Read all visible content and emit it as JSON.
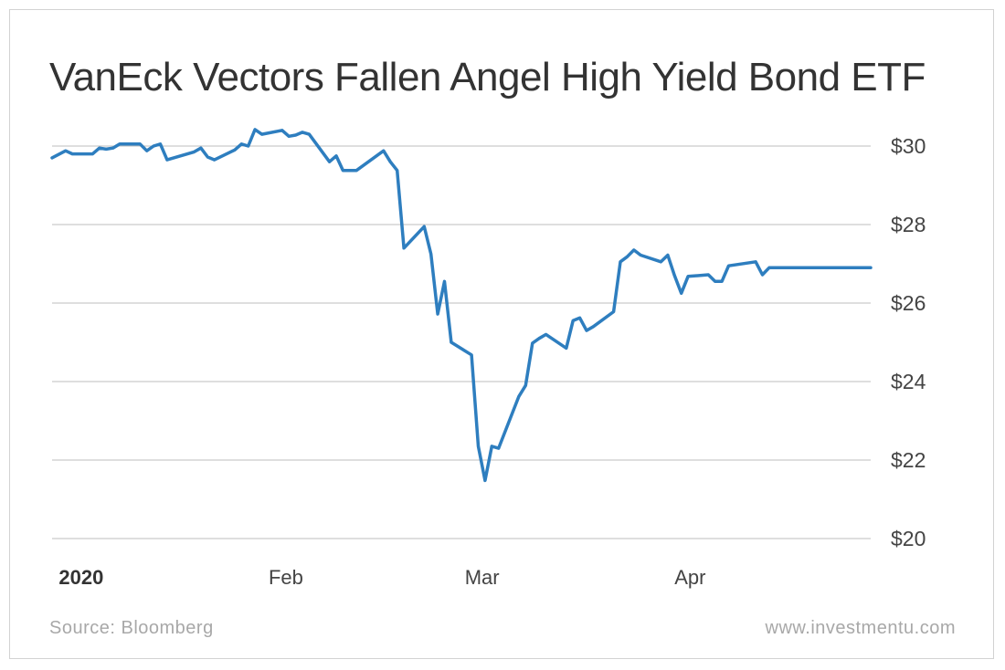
{
  "chart_data": {
    "type": "line",
    "title": "VanEck Vectors Fallen Angel High Yield Bond ETF",
    "xlabel": "",
    "ylabel": "",
    "x_range": [
      "2019-12-31",
      "2020-04-30"
    ],
    "ylim": [
      20,
      30
    ],
    "y_ticks": [
      30,
      28,
      26,
      24,
      22,
      20
    ],
    "y_tick_labels": [
      "$30",
      "$28",
      "$26",
      "$24",
      "$22",
      "$20"
    ],
    "x_ticks": [
      {
        "date": "2020-01-01",
        "label": "2020",
        "bold": true
      },
      {
        "date": "2020-02-01",
        "label": "Feb",
        "bold": false
      },
      {
        "date": "2020-03-01",
        "label": "Mar",
        "bold": false
      },
      {
        "date": "2020-04-01",
        "label": "Apr",
        "bold": false
      }
    ],
    "grid": "horizontal",
    "line_color": "#2e7ebf",
    "series": [
      {
        "x": [
          "2019-12-31",
          "2020-01-02",
          "2020-01-03",
          "2020-01-06",
          "2020-01-07",
          "2020-01-08",
          "2020-01-09",
          "2020-01-10",
          "2020-01-13",
          "2020-01-14",
          "2020-01-15",
          "2020-01-16",
          "2020-01-17",
          "2020-01-21",
          "2020-01-22",
          "2020-01-23",
          "2020-01-24",
          "2020-01-27",
          "2020-01-28",
          "2020-01-29",
          "2020-01-30",
          "2020-01-31",
          "2020-02-03",
          "2020-02-04",
          "2020-02-05",
          "2020-02-06",
          "2020-02-07",
          "2020-02-10",
          "2020-02-11",
          "2020-02-12",
          "2020-02-13",
          "2020-02-14",
          "2020-02-18",
          "2020-02-19",
          "2020-02-20",
          "2020-02-21",
          "2020-02-24",
          "2020-02-25",
          "2020-02-26",
          "2020-02-27",
          "2020-02-28",
          "2020-03-02",
          "2020-03-03",
          "2020-03-04",
          "2020-03-05",
          "2020-03-06",
          "2020-03-09",
          "2020-03-10",
          "2020-03-11",
          "2020-03-12",
          "2020-03-13",
          "2020-03-16",
          "2020-03-17",
          "2020-03-18",
          "2020-03-19",
          "2020-03-20",
          "2020-03-23",
          "2020-03-24",
          "2020-03-25",
          "2020-03-26",
          "2020-03-27",
          "2020-03-30",
          "2020-03-31",
          "2020-04-01",
          "2020-04-02",
          "2020-04-03",
          "2020-04-06",
          "2020-04-07",
          "2020-04-08",
          "2020-04-09",
          "2020-04-13",
          "2020-04-14",
          "2020-04-15",
          "2020-04-16",
          "2020-04-17",
          "2020-04-20",
          "2020-04-21",
          "2020-04-22",
          "2020-04-23",
          "2020-04-24",
          "2020-04-27",
          "2020-04-28",
          "2020-04-29",
          "2020-04-30"
        ],
        "y": [
          29.7,
          29.88,
          29.8,
          29.8,
          29.95,
          29.92,
          29.95,
          30.05,
          30.05,
          29.88,
          30.0,
          30.05,
          29.65,
          29.85,
          29.95,
          29.72,
          29.65,
          29.9,
          30.05,
          30.0,
          30.42,
          30.3,
          30.4,
          30.25,
          30.28,
          30.35,
          30.3,
          29.6,
          29.75,
          29.38,
          29.38,
          29.38,
          29.88,
          29.6,
          29.38,
          27.4,
          27.95,
          27.25,
          25.72,
          26.55,
          25.0,
          24.68,
          22.35,
          21.48,
          22.35,
          22.3,
          23.62,
          23.9,
          24.98,
          25.1,
          25.2,
          24.85,
          25.55,
          25.62,
          25.3,
          25.4,
          25.78,
          27.05,
          27.18,
          27.35,
          27.22,
          27.05,
          27.22,
          26.7,
          26.25,
          26.68,
          26.72,
          26.55,
          26.55,
          26.95,
          27.05,
          26.72,
          26.9,
          26.9,
          26.9,
          26.9,
          26.9,
          26.9,
          26.9,
          26.9,
          26.9,
          26.9,
          26.9,
          26.9
        ]
      }
    ]
  },
  "footer": {
    "source": "Source: Bloomberg",
    "website": "www.investmentu.com"
  }
}
